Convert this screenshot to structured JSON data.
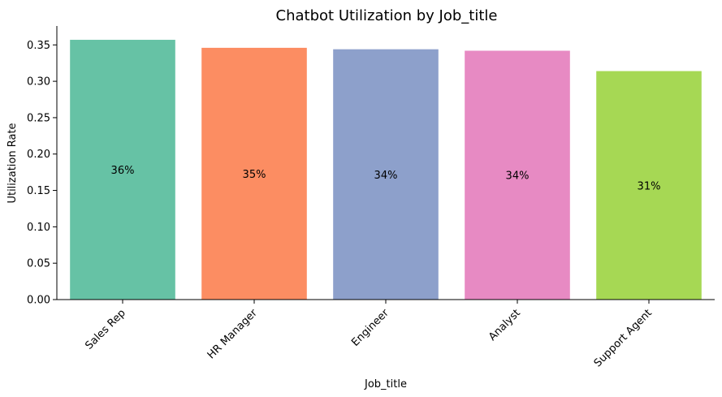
{
  "chart_data": {
    "type": "bar",
    "title": "Chatbot Utilization by Job_title",
    "xlabel": "Job_title",
    "ylabel": "Utilization Rate",
    "categories": [
      "Sales Rep",
      "HR Manager",
      "Engineer",
      "Analyst",
      "Support Agent"
    ],
    "values": [
      0.357,
      0.346,
      0.344,
      0.342,
      0.314
    ],
    "data_labels": [
      "36%",
      "35%",
      "34%",
      "34%",
      "31%"
    ],
    "colors": [
      "#66c2a5",
      "#fc8d62",
      "#8da0cb",
      "#e78ac3",
      "#a6d854"
    ],
    "ylim": [
      0,
      0.376
    ],
    "yticks": [
      "0.00",
      "0.05",
      "0.10",
      "0.15",
      "0.20",
      "0.25",
      "0.30",
      "0.35"
    ],
    "grid": false,
    "legend": "none"
  }
}
